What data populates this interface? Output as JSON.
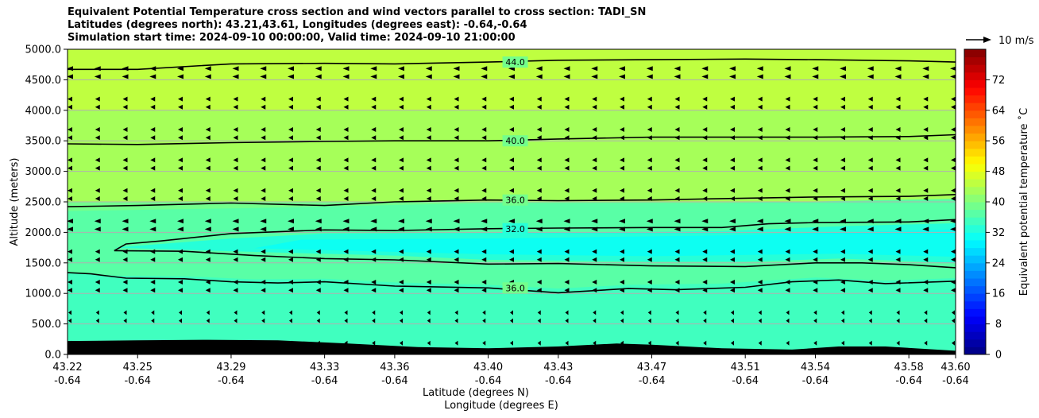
{
  "titles": [
    "Equivalent Potential Temperature cross section and wind vectors parallel to cross section: TADI_SN",
    "Latitudes (degrees north): 43.21,43.61, Longitudes (degrees east): -0.64,-0.64",
    "Simulation start time: 2024-09-10 00:00:00, Valid time: 2024-09-10 21:00:00"
  ],
  "chart_data": {
    "type": "contour cross-section with wind vectors",
    "ylabel": "Altitude (meters)",
    "xlabel_lines": [
      "Latitude (degrees N)",
      "Longitude (degrees E)"
    ],
    "ylim": [
      0,
      5000
    ],
    "yticks": [
      "0.0",
      "500.0",
      "1000.0",
      "1500.0",
      "2000.0",
      "2500.0",
      "3000.0",
      "3500.0",
      "4000.0",
      "4500.0",
      "5000.0"
    ],
    "xticks": [
      {
        "lat": "43.22",
        "lon": "-0.64"
      },
      {
        "lat": "43.25",
        "lon": "-0.64"
      },
      {
        "lat": "43.29",
        "lon": "-0.64"
      },
      {
        "lat": "43.33",
        "lon": "-0.64"
      },
      {
        "lat": "43.36",
        "lon": "-0.64"
      },
      {
        "lat": "43.40",
        "lon": "-0.64"
      },
      {
        "lat": "43.43",
        "lon": "-0.64"
      },
      {
        "lat": "43.47",
        "lon": "-0.64"
      },
      {
        "lat": "43.51",
        "lon": "-0.64"
      },
      {
        "lat": "43.54",
        "lon": "-0.64"
      },
      {
        "lat": "43.58",
        "lon": "-0.64"
      },
      {
        "lat": "43.60",
        "lon": "-0.64"
      }
    ],
    "grid": true,
    "wind_key_label": "10 m/s",
    "colorbar": {
      "label": "Equivalent potential temperature ˚C",
      "ticks": [
        0,
        8,
        16,
        24,
        32,
        40,
        48,
        56,
        64,
        72
      ],
      "range": [
        0,
        80
      ]
    },
    "contours": [
      {
        "label": "44.0",
        "label_x": 43.4,
        "points": [
          [
            43.22,
            4670
          ],
          [
            43.25,
            4670
          ],
          [
            43.29,
            4760
          ],
          [
            43.33,
            4770
          ],
          [
            43.36,
            4760
          ],
          [
            43.4,
            4790
          ],
          [
            43.43,
            4820
          ],
          [
            43.47,
            4830
          ],
          [
            43.51,
            4840
          ],
          [
            43.54,
            4830
          ],
          [
            43.58,
            4810
          ],
          [
            43.6,
            4790
          ]
        ]
      },
      {
        "label": "40.0",
        "label_x": 43.4,
        "points": [
          [
            43.22,
            3450
          ],
          [
            43.25,
            3440
          ],
          [
            43.29,
            3470
          ],
          [
            43.33,
            3490
          ],
          [
            43.36,
            3500
          ],
          [
            43.4,
            3500
          ],
          [
            43.43,
            3530
          ],
          [
            43.47,
            3560
          ],
          [
            43.51,
            3560
          ],
          [
            43.54,
            3560
          ],
          [
            43.58,
            3570
          ],
          [
            43.6,
            3600
          ]
        ]
      },
      {
        "label": "36.0",
        "label_x": 43.4,
        "points": [
          [
            43.22,
            2420
          ],
          [
            43.25,
            2440
          ],
          [
            43.29,
            2480
          ],
          [
            43.33,
            2440
          ],
          [
            43.36,
            2500
          ],
          [
            43.4,
            2530
          ],
          [
            43.43,
            2520
          ],
          [
            43.47,
            2530
          ],
          [
            43.51,
            2560
          ],
          [
            43.54,
            2580
          ],
          [
            43.58,
            2590
          ],
          [
            43.6,
            2620
          ]
        ]
      },
      {
        "label": "32.0",
        "label_x": 43.4,
        "points": [
          [
            43.24,
            1700
          ],
          [
            43.245,
            1810
          ],
          [
            43.26,
            1860
          ],
          [
            43.29,
            1980
          ],
          [
            43.33,
            2040
          ],
          [
            43.36,
            2030
          ],
          [
            43.4,
            2060
          ],
          [
            43.43,
            2070
          ],
          [
            43.47,
            2080
          ],
          [
            43.5,
            2080
          ],
          [
            43.52,
            2140
          ],
          [
            43.54,
            2160
          ],
          [
            43.58,
            2170
          ],
          [
            43.6,
            2210
          ]
        ]
      },
      {
        "label": "",
        "label_x": null,
        "points": [
          [
            43.24,
            1700
          ],
          [
            43.27,
            1690
          ],
          [
            43.3,
            1620
          ],
          [
            43.33,
            1570
          ],
          [
            43.36,
            1550
          ],
          [
            43.4,
            1480
          ],
          [
            43.43,
            1490
          ],
          [
            43.47,
            1450
          ],
          [
            43.51,
            1440
          ],
          [
            43.54,
            1500
          ],
          [
            43.56,
            1500
          ],
          [
            43.58,
            1470
          ],
          [
            43.6,
            1420
          ]
        ]
      },
      {
        "label": "36.0",
        "label_x": 43.4,
        "points": [
          [
            43.22,
            1340
          ],
          [
            43.23,
            1320
          ],
          [
            43.245,
            1250
          ],
          [
            43.27,
            1240
          ],
          [
            43.29,
            1190
          ],
          [
            43.31,
            1170
          ],
          [
            43.33,
            1190
          ],
          [
            43.36,
            1120
          ],
          [
            43.4,
            1090
          ],
          [
            43.43,
            1010
          ],
          [
            43.46,
            1080
          ],
          [
            43.48,
            1060
          ],
          [
            43.51,
            1100
          ],
          [
            43.53,
            1190
          ],
          [
            43.55,
            1220
          ],
          [
            43.57,
            1160
          ],
          [
            43.6,
            1200
          ]
        ]
      }
    ],
    "terrain": [
      [
        43.22,
        220
      ],
      [
        43.25,
        230
      ],
      [
        43.28,
        240
      ],
      [
        43.31,
        230
      ],
      [
        43.34,
        180
      ],
      [
        43.37,
        120
      ],
      [
        43.4,
        100
      ],
      [
        43.43,
        130
      ],
      [
        43.455,
        180
      ],
      [
        43.47,
        160
      ],
      [
        43.5,
        100
      ],
      [
        43.53,
        80
      ],
      [
        43.55,
        130
      ],
      [
        43.57,
        130
      ],
      [
        43.6,
        60
      ]
    ],
    "fill_bands": [
      {
        "theta": 43,
        "lower": [
          [
            43.22,
            4000
          ],
          [
            43.6,
            4000
          ]
        ]
      },
      {
        "theta": 38,
        "lower": [
          [
            43.22,
            2500
          ],
          [
            43.6,
            2500
          ]
        ]
      },
      {
        "theta": 36,
        "lower": [
          [
            43.22,
            2350
          ],
          [
            43.3,
            2400
          ],
          [
            43.4,
            2480
          ],
          [
            43.5,
            2480
          ],
          [
            43.6,
            2550
          ]
        ]
      },
      {
        "theta": 34,
        "lower": [
          [
            43.22,
            1350
          ],
          [
            43.24,
            1290
          ],
          [
            43.27,
            1280
          ],
          [
            43.3,
            1230
          ],
          [
            43.33,
            1240
          ],
          [
            43.36,
            1180
          ],
          [
            43.4,
            1140
          ],
          [
            43.43,
            1080
          ],
          [
            43.46,
            1140
          ],
          [
            43.5,
            1160
          ],
          [
            43.54,
            1260
          ],
          [
            43.57,
            1210
          ],
          [
            43.6,
            1250
          ]
        ]
      },
      {
        "theta": 32,
        "lower": [
          [
            43.24,
            1750
          ],
          [
            43.3,
            1680
          ],
          [
            43.36,
            1620
          ],
          [
            43.4,
            1550
          ],
          [
            43.47,
            1520
          ],
          [
            43.51,
            1520
          ],
          [
            43.55,
            1570
          ],
          [
            43.6,
            1500
          ]
        ],
        "upper": [
          [
            43.6,
            2150
          ],
          [
            43.55,
            2100
          ],
          [
            43.5,
            2020
          ],
          [
            43.4,
            1990
          ],
          [
            43.33,
            1980
          ],
          [
            43.29,
            1900
          ],
          [
            43.25,
            1780
          ]
        ]
      },
      {
        "theta": 31,
        "lower": [
          [
            43.3,
            1740
          ],
          [
            43.4,
            1640
          ],
          [
            43.47,
            1610
          ],
          [
            43.55,
            1650
          ],
          [
            43.6,
            1600
          ]
        ],
        "upper": [
          [
            43.6,
            2050
          ],
          [
            43.5,
            1950
          ],
          [
            43.4,
            1900
          ],
          [
            43.32,
            1880
          ]
        ]
      }
    ]
  }
}
